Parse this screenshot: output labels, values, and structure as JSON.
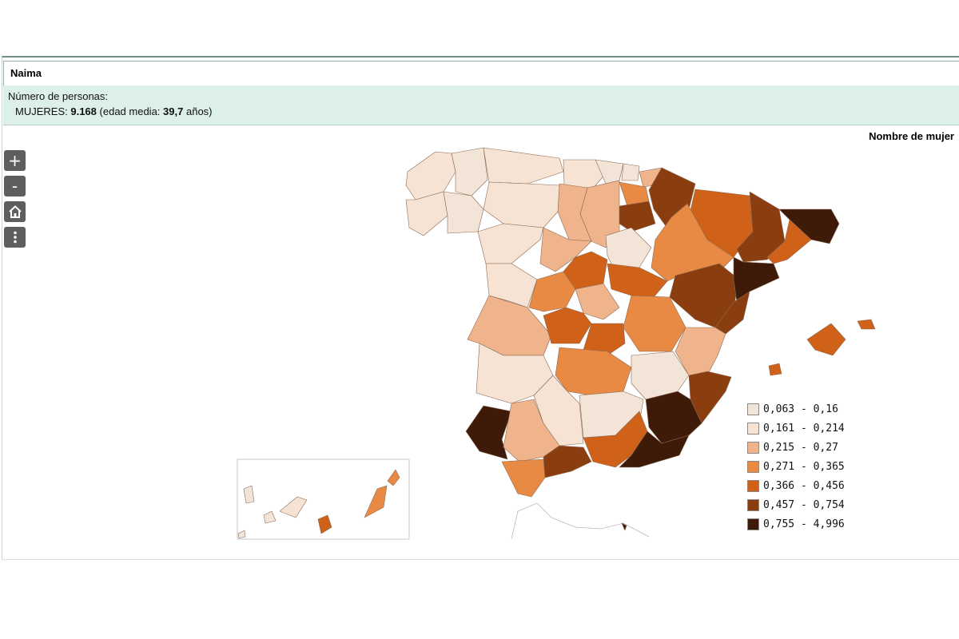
{
  "header": {
    "name": "Naima"
  },
  "info": {
    "persons_label": "Número de personas:",
    "women_label": "MUJERES:",
    "women_count": "9.168",
    "age_prefix": "(edad media:",
    "age_value": "39,7",
    "age_suffix": "años)"
  },
  "map": {
    "title": "Nombre de mujer",
    "controls": [
      {
        "name": "zoom-in",
        "symbol": "+"
      },
      {
        "name": "zoom-out",
        "symbol": "-"
      },
      {
        "name": "home",
        "symbol": "home-icon"
      },
      {
        "name": "menu",
        "symbol": "more-vertical-icon"
      }
    ]
  },
  "legend": [
    {
      "label": "0,063 - 0,16",
      "color": "#f3e4d8"
    },
    {
      "label": "0,161 - 0,214",
      "color": "#f6e3d3"
    },
    {
      "label": "0,215 - 0,27",
      "color": "#efb48c"
    },
    {
      "label": "0,271 - 0,365",
      "color": "#e98a44"
    },
    {
      "label": "0,366 - 0,456",
      "color": "#cf6119"
    },
    {
      "label": "0,457 - 0,754",
      "color": "#8a3e10"
    },
    {
      "label": "0,755 - 4,996",
      "color": "#3e1b08"
    }
  ]
}
